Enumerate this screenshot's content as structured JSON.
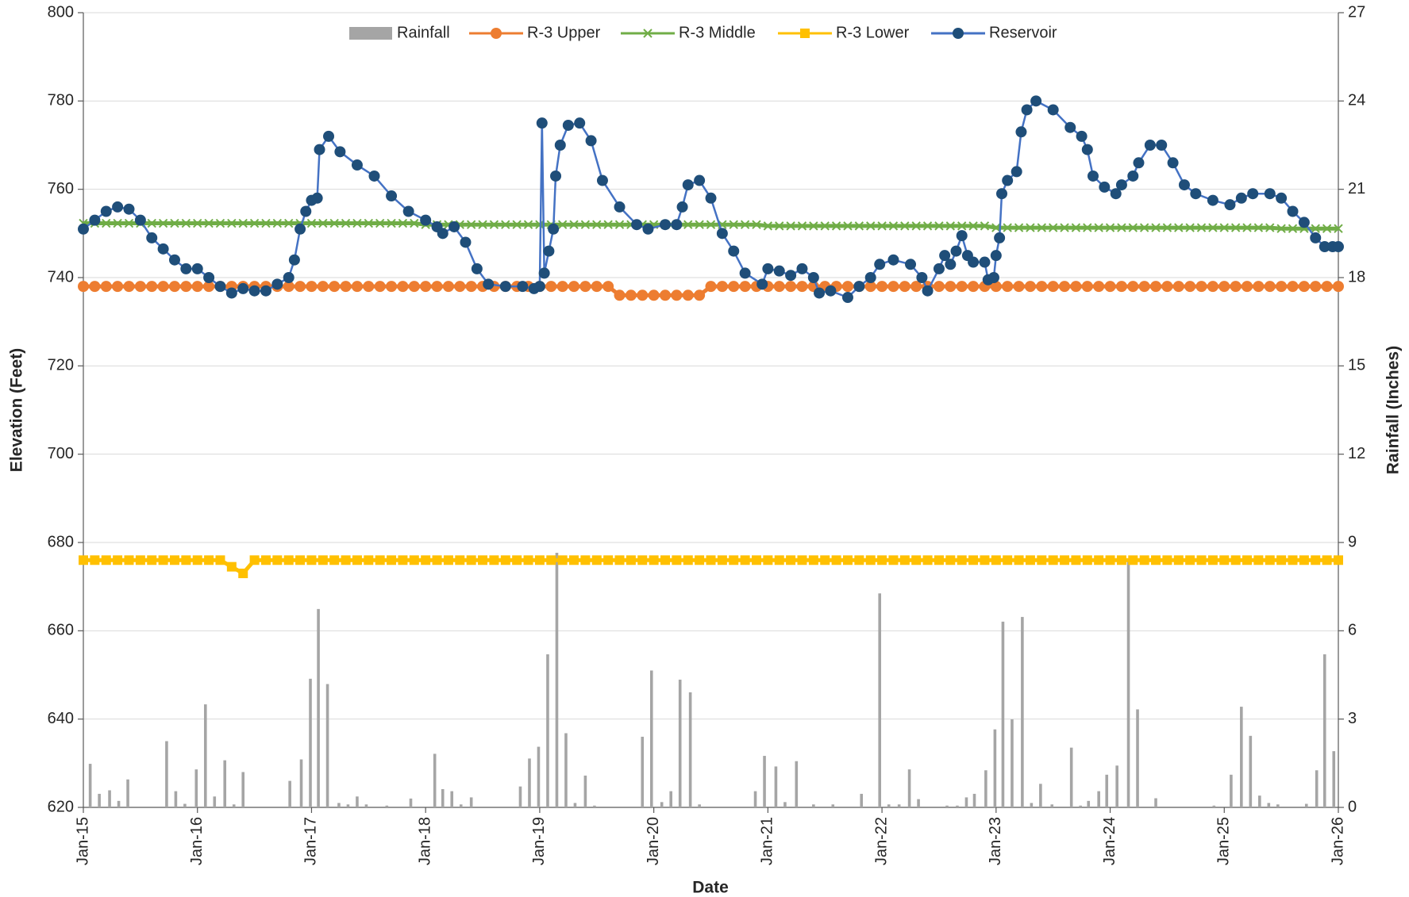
{
  "chart_data": {
    "type": "line",
    "x_label": "Date",
    "y_label": "Elevation (Feet)",
    "y2_label": "Rainfall (Inches)",
    "xlim": [
      2015,
      2026
    ],
    "xticks": [
      {
        "value": 2015,
        "label": "Jan-15"
      },
      {
        "value": 2016,
        "label": "Jan-16"
      },
      {
        "value": 2017,
        "label": "Jan-17"
      },
      {
        "value": 2018,
        "label": "Jan-18"
      },
      {
        "value": 2019,
        "label": "Jan-19"
      },
      {
        "value": 2020,
        "label": "Jan-20"
      },
      {
        "value": 2021,
        "label": "Jan-21"
      },
      {
        "value": 2022,
        "label": "Jan-22"
      },
      {
        "value": 2023,
        "label": "Jan-23"
      },
      {
        "value": 2024,
        "label": "Jan-24"
      },
      {
        "value": 2025,
        "label": "Jan-25"
      },
      {
        "value": 2026,
        "label": "Jan-26"
      }
    ],
    "ylim": [
      620,
      800
    ],
    "yticks": [
      620,
      640,
      660,
      680,
      700,
      720,
      740,
      760,
      780,
      800
    ],
    "y2lim": [
      0,
      27
    ],
    "y2ticks": [
      0,
      3,
      6,
      9,
      12,
      15,
      18,
      21,
      24,
      27
    ],
    "grid": true,
    "legend": "top",
    "x": [
      2015,
      2015.1,
      2015.2,
      2015.3,
      2015.4,
      2015.5,
      2015.6,
      2015.7,
      2015.8,
      2015.9,
      2016,
      2016.1,
      2016.2,
      2016.3,
      2016.4,
      2016.5,
      2016.6,
      2016.7,
      2016.8,
      2016.9,
      2017,
      2017.1,
      2017.2,
      2017.3,
      2017.4,
      2017.5,
      2017.6,
      2017.7,
      2017.8,
      2017.9,
      2018,
      2018.1,
      2018.2,
      2018.3,
      2018.4,
      2018.5,
      2018.6,
      2018.7,
      2018.8,
      2018.9,
      2019,
      2019.1,
      2019.2,
      2019.3,
      2019.4,
      2019.5,
      2019.6,
      2019.7,
      2019.8,
      2019.9,
      2020,
      2020.1,
      2020.2,
      2020.3,
      2020.4,
      2020.5,
      2020.6,
      2020.7,
      2020.8,
      2020.9,
      2021,
      2021.1,
      2021.2,
      2021.3,
      2021.4,
      2021.5,
      2021.6,
      2021.7,
      2021.8,
      2021.9,
      2022,
      2022.1,
      2022.2,
      2022.3,
      2022.4,
      2022.5,
      2022.6,
      2022.7,
      2022.8,
      2022.9,
      2023,
      2023.1,
      2023.2,
      2023.3,
      2023.4,
      2023.5,
      2023.6,
      2023.7,
      2023.8,
      2023.9,
      2024,
      2024.1,
      2024.2,
      2024.3,
      2024.4,
      2024.5,
      2024.6,
      2024.7,
      2024.8,
      2024.9,
      2025,
      2025.1,
      2025.2,
      2025.3,
      2025.4,
      2025.5,
      2025.6,
      2025.7,
      2025.8,
      2025.9,
      2026
    ],
    "series": [
      {
        "name": "Rainfall",
        "type": "bar",
        "axis": "y2",
        "color": "#a5a5a5",
        "x": [
          2015.06,
          2015.14,
          2015.23,
          2015.31,
          2015.39,
          2015.73,
          2015.81,
          2015.89,
          2015.99,
          2016.07,
          2016.15,
          2016.24,
          2016.32,
          2016.4,
          2016.81,
          2016.91,
          2016.99,
          2017.06,
          2017.14,
          2017.24,
          2017.32,
          2017.4,
          2017.48,
          2017.66,
          2017.87,
          2018.08,
          2018.15,
          2018.23,
          2018.31,
          2018.4,
          2018.83,
          2018.91,
          2018.99,
          2019.07,
          2019.15,
          2019.23,
          2019.31,
          2019.4,
          2019.48,
          2019.9,
          2019.98,
          2020.07,
          2020.15,
          2020.23,
          2020.32,
          2020.4,
          2020.89,
          2020.97,
          2021.07,
          2021.15,
          2021.25,
          2021.4,
          2021.57,
          2021.82,
          2021.98,
          2022.06,
          2022.15,
          2022.24,
          2022.32,
          2022.57,
          2022.66,
          2022.74,
          2022.81,
          2022.91,
          2022.99,
          2023.06,
          2023.14,
          2023.23,
          2023.31,
          2023.39,
          2023.49,
          2023.66,
          2023.74,
          2023.81,
          2023.9,
          2023.97,
          2024.06,
          2024.16,
          2024.24,
          2024.4,
          2024.91,
          2025.06,
          2025.15,
          2025.23,
          2025.31,
          2025.39,
          2025.47,
          2025.72,
          2025.81,
          2025.88,
          2025.96
        ],
        "values": [
          1.48,
          0.46,
          0.58,
          0.22,
          0.95,
          2.25,
          0.55,
          0.12,
          1.29,
          3.5,
          0.37,
          1.6,
          0.1,
          1.2,
          0.9,
          1.63,
          4.37,
          6.74,
          4.19,
          0.15,
          0.1,
          0.37,
          0.1,
          0.06,
          0.3,
          1.82,
          0.62,
          0.55,
          0.1,
          0.34,
          0.71,
          1.66,
          2.06,
          5.2,
          8.65,
          2.52,
          0.15,
          1.08,
          0.06,
          2.4,
          4.65,
          0.18,
          0.55,
          4.34,
          3.91,
          0.1,
          0.55,
          1.75,
          1.39,
          0.18,
          1.57,
          0.1,
          0.1,
          0.46,
          7.27,
          0.1,
          0.1,
          1.29,
          0.28,
          0.06,
          0.06,
          0.34,
          0.46,
          1.26,
          2.65,
          6.31,
          2.99,
          6.47,
          0.15,
          0.8,
          0.1,
          2.03,
          0.06,
          0.22,
          0.55,
          1.11,
          1.42,
          8.34,
          3.33,
          0.31,
          0.06,
          1.11,
          3.42,
          2.43,
          0.4,
          0.15,
          0.1,
          0.12,
          1.26,
          5.2,
          1.91
        ]
      },
      {
        "name": "R-3 Upper",
        "type": "line",
        "marker": "circle",
        "color": "#ed7d31",
        "values": [
          738,
          738,
          738,
          738,
          738,
          738,
          738,
          738,
          738,
          738,
          738,
          738,
          738,
          738,
          738,
          738,
          738,
          738,
          738,
          738,
          738,
          738,
          738,
          738,
          738,
          738,
          738,
          738,
          738,
          738,
          738,
          738,
          738,
          738,
          738,
          738,
          738,
          738,
          738,
          738,
          738,
          738,
          738,
          738,
          738,
          738,
          738,
          736,
          736,
          736,
          736,
          736,
          736,
          736,
          736,
          738,
          738,
          738,
          738,
          738,
          738,
          738,
          738,
          738,
          738,
          738,
          738,
          738,
          738,
          738,
          738,
          738,
          738,
          738,
          738,
          738,
          738,
          738,
          738,
          738,
          738,
          738,
          738,
          738,
          738,
          738,
          738,
          738,
          738,
          738,
          738,
          738,
          738,
          738,
          738,
          738,
          738,
          738,
          738,
          738,
          738,
          738,
          738,
          738,
          738,
          738,
          738,
          738,
          738,
          738,
          738
        ]
      },
      {
        "name": "R-3 Middle",
        "type": "line",
        "marker": "x",
        "color": "#70ad47",
        "values": [
          752.3,
          752.3,
          752.3,
          752.3,
          752.3,
          752.3,
          752.3,
          752.3,
          752.3,
          752.3,
          752.3,
          752.3,
          752.3,
          752.3,
          752.3,
          752.3,
          752.3,
          752.3,
          752.3,
          752.3,
          752.3,
          752.3,
          752.3,
          752.3,
          752.3,
          752.3,
          752.3,
          752.3,
          752.3,
          752.3,
          752,
          752,
          752,
          752,
          752,
          752,
          752,
          752,
          752,
          752,
          752,
          752,
          752,
          752,
          752,
          752,
          752,
          752,
          752,
          752,
          752,
          752,
          752,
          752,
          752,
          752,
          752,
          752,
          752,
          752,
          751.7,
          751.7,
          751.7,
          751.7,
          751.7,
          751.7,
          751.7,
          751.7,
          751.7,
          751.7,
          751.7,
          751.7,
          751.7,
          751.7,
          751.7,
          751.7,
          751.7,
          751.7,
          751.7,
          751.7,
          751.3,
          751.3,
          751.3,
          751.3,
          751.3,
          751.3,
          751.3,
          751.3,
          751.3,
          751.3,
          751.3,
          751.3,
          751.3,
          751.3,
          751.3,
          751.3,
          751.3,
          751.3,
          751.3,
          751.3,
          751.3,
          751.3,
          751.3,
          751.3,
          751.3,
          751.1,
          751.1,
          751.1,
          751.1,
          751.1,
          751.1
        ]
      },
      {
        "name": "R-3 Lower",
        "type": "line",
        "marker": "square",
        "color": "#ffc000",
        "values": [
          676,
          676,
          676,
          676,
          676,
          676,
          676,
          676,
          676,
          676,
          676,
          676,
          676,
          674.5,
          673,
          676,
          676,
          676,
          676,
          676,
          676,
          676,
          676,
          676,
          676,
          676,
          676,
          676,
          676,
          676,
          676,
          676,
          676,
          676,
          676,
          676,
          676,
          676,
          676,
          676,
          676,
          676,
          676,
          676,
          676,
          676,
          676,
          676,
          676,
          676,
          676,
          676,
          676,
          676,
          676,
          676,
          676,
          676,
          676,
          676,
          676,
          676,
          676,
          676,
          676,
          676,
          676,
          676,
          676,
          676,
          676,
          676,
          676,
          676,
          676,
          676,
          676,
          676,
          676,
          676,
          676,
          676,
          676,
          676,
          676,
          676,
          676,
          676,
          676,
          676,
          676,
          676,
          676,
          676,
          676,
          676,
          676,
          676,
          676,
          676,
          676,
          676,
          676,
          676,
          676,
          676,
          676,
          676,
          676,
          676,
          676
        ]
      },
      {
        "name": "Reservoir",
        "type": "line",
        "marker": "circle",
        "color": "#4472c4",
        "marker_color": "#1f4e79",
        "x": [
          2015.0,
          2015.1,
          2015.2,
          2015.3,
          2015.4,
          2015.5,
          2015.6,
          2015.7,
          2015.8,
          2015.9,
          2016.0,
          2016.1,
          2016.2,
          2016.3,
          2016.4,
          2016.5,
          2016.6,
          2016.7,
          2016.8,
          2016.85,
          2016.9,
          2016.95,
          2017.0,
          2017.05,
          2017.07,
          2017.15,
          2017.25,
          2017.4,
          2017.55,
          2017.7,
          2017.85,
          2018.0,
          2018.1,
          2018.15,
          2018.25,
          2018.35,
          2018.45,
          2018.55,
          2018.7,
          2018.85,
          2018.95,
          2019.0,
          2019.02,
          2019.04,
          2019.08,
          2019.12,
          2019.14,
          2019.18,
          2019.25,
          2019.35,
          2019.45,
          2019.55,
          2019.7,
          2019.85,
          2019.95,
          2020.1,
          2020.2,
          2020.25,
          2020.3,
          2020.4,
          2020.5,
          2020.6,
          2020.7,
          2020.8,
          2020.95,
          2021.0,
          2021.1,
          2021.2,
          2021.3,
          2021.4,
          2021.45,
          2021.55,
          2021.7,
          2021.8,
          2021.9,
          2021.98,
          2022.1,
          2022.25,
          2022.35,
          2022.4,
          2022.5,
          2022.55,
          2022.6,
          2022.65,
          2022.7,
          2022.75,
          2022.8,
          2022.9,
          2022.93,
          2022.98,
          2023.0,
          2023.03,
          2023.05,
          2023.1,
          2023.18,
          2023.22,
          2023.27,
          2023.35,
          2023.5,
          2023.65,
          2023.75,
          2023.8,
          2023.85,
          2023.95,
          2024.05,
          2024.1,
          2024.2,
          2024.25,
          2024.35,
          2024.45,
          2024.55,
          2024.65,
          2024.75,
          2024.9,
          2025.05,
          2025.15,
          2025.25,
          2025.4,
          2025.5,
          2025.6,
          2025.7,
          2025.8,
          2025.88,
          2025.95,
          2026.0
        ],
        "values": [
          751,
          753,
          755,
          756,
          755.5,
          753,
          749,
          746.5,
          744,
          742,
          742,
          740,
          738,
          736.5,
          737.5,
          737,
          737,
          738.5,
          740,
          744,
          751,
          755,
          757.5,
          758,
          769,
          772,
          768.5,
          765.5,
          763,
          758.5,
          755,
          753,
          751.5,
          750,
          751.5,
          748,
          742,
          738.5,
          738,
          738,
          737.5,
          738,
          775,
          741,
          746,
          751,
          763,
          770,
          774.5,
          775,
          771,
          762,
          756,
          752,
          751,
          752,
          752,
          756,
          761,
          762,
          758,
          750,
          746,
          741,
          738.5,
          742,
          741.5,
          740.5,
          742,
          740,
          736.5,
          737,
          735.5,
          738,
          740,
          743,
          744,
          743,
          740,
          737,
          742,
          745,
          743,
          746,
          749.5,
          745,
          743.5,
          743.5,
          739.5,
          740,
          745,
          749,
          759,
          762,
          764,
          773,
          778,
          780,
          778,
          774,
          772,
          769,
          763,
          760.5,
          759,
          761,
          763,
          766,
          770,
          770,
          766,
          761,
          759,
          757.5,
          756.5,
          758,
          759,
          759,
          758,
          755,
          752.5,
          749,
          747,
          747,
          747
        ]
      }
    ]
  }
}
